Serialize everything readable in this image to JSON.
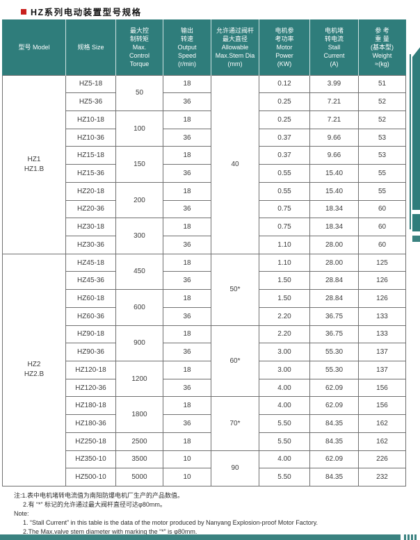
{
  "page_title": "HZ系列电动装置型号规格",
  "colors": {
    "teal": "#2f7d7b",
    "teal_light": "#3a8280",
    "red": "#c9211e"
  },
  "table": {
    "headers": [
      {
        "lines": [
          "型号 Model"
        ]
      },
      {
        "lines": [
          "规格  Size"
        ]
      },
      {
        "lines": [
          "最大控",
          "制转矩",
          "Max.",
          "Control",
          "Torque"
        ]
      },
      {
        "lines": [
          "输出",
          "转速",
          "Output",
          "Speed",
          "(r/min)"
        ]
      },
      {
        "lines": [
          "允许通过阀杆",
          "最大直径",
          "Allowable",
          "Max.Stem Dia",
          "(mm)"
        ]
      },
      {
        "lines": [
          "电机参",
          "考功率",
          "Motor",
          "Power",
          "(KW)"
        ]
      },
      {
        "lines": [
          "电机堵",
          "转电流",
          "Stall",
          "Current",
          "(A)"
        ]
      },
      {
        "lines": [
          "参 考",
          "重 量",
          "(基本型)",
          "Weight",
          "≈(kg)"
        ]
      }
    ],
    "model_groups": [
      {
        "start": 0,
        "span": 10,
        "lines": [
          "HZ1",
          "HZ1.B"
        ]
      },
      {
        "start": 10,
        "span": 13,
        "lines": [
          "HZ2",
          "HZ2.B"
        ]
      }
    ],
    "torque_groups": [
      {
        "start": 0,
        "span": 2,
        "value": "50"
      },
      {
        "start": 2,
        "span": 2,
        "value": "100"
      },
      {
        "start": 4,
        "span": 2,
        "value": "150"
      },
      {
        "start": 6,
        "span": 2,
        "value": "200"
      },
      {
        "start": 8,
        "span": 2,
        "value": "300"
      },
      {
        "start": 10,
        "span": 2,
        "value": "450"
      },
      {
        "start": 12,
        "span": 2,
        "value": "600"
      },
      {
        "start": 14,
        "span": 2,
        "value": "900"
      },
      {
        "start": 16,
        "span": 2,
        "value": "1200"
      },
      {
        "start": 18,
        "span": 2,
        "value": "1800"
      },
      {
        "start": 20,
        "span": 1,
        "value": "2500"
      },
      {
        "start": 21,
        "span": 1,
        "value": "3500"
      },
      {
        "start": 22,
        "span": 1,
        "value": "5000"
      }
    ],
    "stem_groups": [
      {
        "start": 0,
        "span": 10,
        "value": "40"
      },
      {
        "start": 10,
        "span": 4,
        "value": "50*"
      },
      {
        "start": 14,
        "span": 4,
        "value": "60*"
      },
      {
        "start": 18,
        "span": 3,
        "value": "70*"
      },
      {
        "start": 21,
        "span": 2,
        "value": "90"
      }
    ],
    "rows": [
      {
        "size": "HZ5-18",
        "speed": "18",
        "power": "0.12",
        "stall": "3.99",
        "weight": "51"
      },
      {
        "size": "HZ5-36",
        "speed": "36",
        "power": "0.25",
        "stall": "7.21",
        "weight": "52"
      },
      {
        "size": "HZ10-18",
        "speed": "18",
        "power": "0.25",
        "stall": "7.21",
        "weight": "52"
      },
      {
        "size": "HZ10-36",
        "speed": "36",
        "power": "0.37",
        "stall": "9.66",
        "weight": "53"
      },
      {
        "size": "HZ15-18",
        "speed": "18",
        "power": "0.37",
        "stall": "9.66",
        "weight": "53"
      },
      {
        "size": "HZ15-36",
        "speed": "36",
        "power": "0.55",
        "stall": "15.40",
        "weight": "55"
      },
      {
        "size": "HZ20-18",
        "speed": "18",
        "power": "0.55",
        "stall": "15.40",
        "weight": "55"
      },
      {
        "size": "HZ20-36",
        "speed": "36",
        "power": "0.75",
        "stall": "18.34",
        "weight": "60"
      },
      {
        "size": "HZ30-18",
        "speed": "18",
        "power": "0.75",
        "stall": "18.34",
        "weight": "60"
      },
      {
        "size": "HZ30-36",
        "speed": "36",
        "power": "1.10",
        "stall": "28.00",
        "weight": "60"
      },
      {
        "size": "HZ45-18",
        "speed": "18",
        "power": "1.10",
        "stall": "28.00",
        "weight": "125"
      },
      {
        "size": "HZ45-36",
        "speed": "36",
        "power": "1.50",
        "stall": "28.84",
        "weight": "126"
      },
      {
        "size": "HZ60-18",
        "speed": "18",
        "power": "1.50",
        "stall": "28.84",
        "weight": "126"
      },
      {
        "size": "HZ60-36",
        "speed": "36",
        "power": "2.20",
        "stall": "36.75",
        "weight": "133"
      },
      {
        "size": "HZ90-18",
        "speed": "18",
        "power": "2.20",
        "stall": "36.75",
        "weight": "133"
      },
      {
        "size": "HZ90-36",
        "speed": "36",
        "power": "3.00",
        "stall": "55.30",
        "weight": "137"
      },
      {
        "size": "HZ120-18",
        "speed": "18",
        "power": "3.00",
        "stall": "55.30",
        "weight": "137"
      },
      {
        "size": "HZ120-36",
        "speed": "36",
        "power": "4.00",
        "stall": "62.09",
        "weight": "156"
      },
      {
        "size": "HZ180-18",
        "speed": "18",
        "power": "4.00",
        "stall": "62.09",
        "weight": "156"
      },
      {
        "size": "HZ180-36",
        "speed": "36",
        "power": "5.50",
        "stall": "84.35",
        "weight": "162"
      },
      {
        "size": "HZ250-18",
        "speed": "18",
        "power": "5.50",
        "stall": "84.35",
        "weight": "162"
      },
      {
        "size": "HZ350-10",
        "speed": "10",
        "power": "4.00",
        "stall": "62.09",
        "weight": "226"
      },
      {
        "size": "HZ500-10",
        "speed": "10",
        "power": "5.50",
        "stall": "84.35",
        "weight": "232"
      }
    ]
  },
  "notes": {
    "cn1": "注:1.表中电机堵转电流值为南阳防爆电机厂生产的产品数值。",
    "cn2": "2.有 “*” 标记的允许通过最大阀杆直径可达φ80mm。",
    "label": "Note:",
    "en1": "1. “Stall Current” in this table is the data of the motor produced by Nanyang Explosion-proof Motor Factory.",
    "en2": "2.The Max.valve stem diameter with  marking  the  “*” is φ80mm."
  }
}
